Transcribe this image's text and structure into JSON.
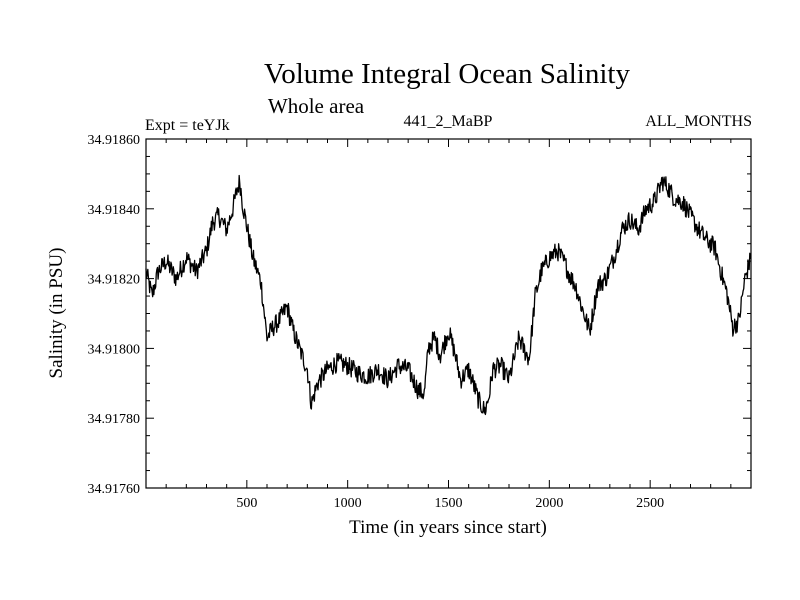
{
  "chart_data": {
    "type": "line",
    "title": "Volume Integral Ocean Salinity",
    "subtitle": "Whole area",
    "annotations": {
      "left": "Expt = teYJk",
      "center": "441_2_MaBP",
      "right": "ALL_MONTHS"
    },
    "xlabel": "Time (in years since start)",
    "ylabel": "Salinity (in PSU)",
    "xlim": [
      0,
      3000
    ],
    "ylim": [
      34.9176,
      34.9186
    ],
    "xticks": [
      500,
      1000,
      1500,
      2000,
      2500
    ],
    "xtick_labels": [
      "500",
      "1000",
      "1500",
      "2000",
      "2500"
    ],
    "yticks": [
      34.9176,
      34.9178,
      34.918,
      34.9182,
      34.9184,
      34.9186
    ],
    "ytick_labels": [
      "34.91760",
      "34.91780",
      "34.91800",
      "34.91820",
      "34.91840",
      "34.91860"
    ],
    "grid": false,
    "series": [
      {
        "name": "Salinity",
        "color": "#000000",
        "x": [
          0,
          30,
          60,
          100,
          150,
          200,
          250,
          300,
          330,
          360,
          400,
          430,
          450,
          465,
          480,
          500,
          530,
          570,
          600,
          630,
          660,
          700,
          730,
          760,
          800,
          820,
          850,
          900,
          950,
          1000,
          1050,
          1100,
          1150,
          1200,
          1250,
          1300,
          1350,
          1380,
          1400,
          1430,
          1460,
          1500,
          1530,
          1560,
          1600,
          1650,
          1680,
          1700,
          1720,
          1760,
          1800,
          1850,
          1880,
          1900,
          1930,
          1960,
          2000,
          2040,
          2080,
          2100,
          2130,
          2160,
          2200,
          2240,
          2280,
          2320,
          2360,
          2400,
          2440,
          2480,
          2520,
          2560,
          2590,
          2620,
          2660,
          2700,
          2740,
          2780,
          2820,
          2860,
          2880,
          2910,
          2940,
          2970,
          3000
        ],
        "values": [
          34.91822,
          34.91815,
          34.91822,
          34.91825,
          34.9182,
          34.91826,
          34.91822,
          34.91828,
          34.91836,
          34.91838,
          34.91834,
          34.9184,
          34.91845,
          34.91848,
          34.91841,
          34.91835,
          34.91826,
          34.91819,
          34.91803,
          34.91806,
          34.91808,
          34.91812,
          34.91805,
          34.918,
          34.91794,
          34.91784,
          34.9179,
          34.91794,
          34.91796,
          34.91795,
          34.91793,
          34.91792,
          34.91794,
          34.91791,
          34.91795,
          34.91794,
          34.91788,
          34.91787,
          34.918,
          34.91803,
          34.91798,
          34.91805,
          34.91799,
          34.91791,
          34.91794,
          34.91785,
          34.91782,
          34.91786,
          34.91794,
          34.91795,
          34.91791,
          34.91803,
          34.91799,
          34.91797,
          34.91815,
          34.91822,
          34.91826,
          34.91828,
          34.91824,
          34.91821,
          34.91818,
          34.91812,
          34.91805,
          34.91818,
          34.9182,
          34.91826,
          34.91834,
          34.91837,
          34.91834,
          34.9184,
          34.91842,
          34.91848,
          34.91846,
          34.91843,
          34.91842,
          34.91838,
          34.91834,
          34.91831,
          34.91829,
          34.9182,
          34.91816,
          34.91806,
          34.91808,
          34.9182,
          34.91826
        ]
      }
    ]
  }
}
